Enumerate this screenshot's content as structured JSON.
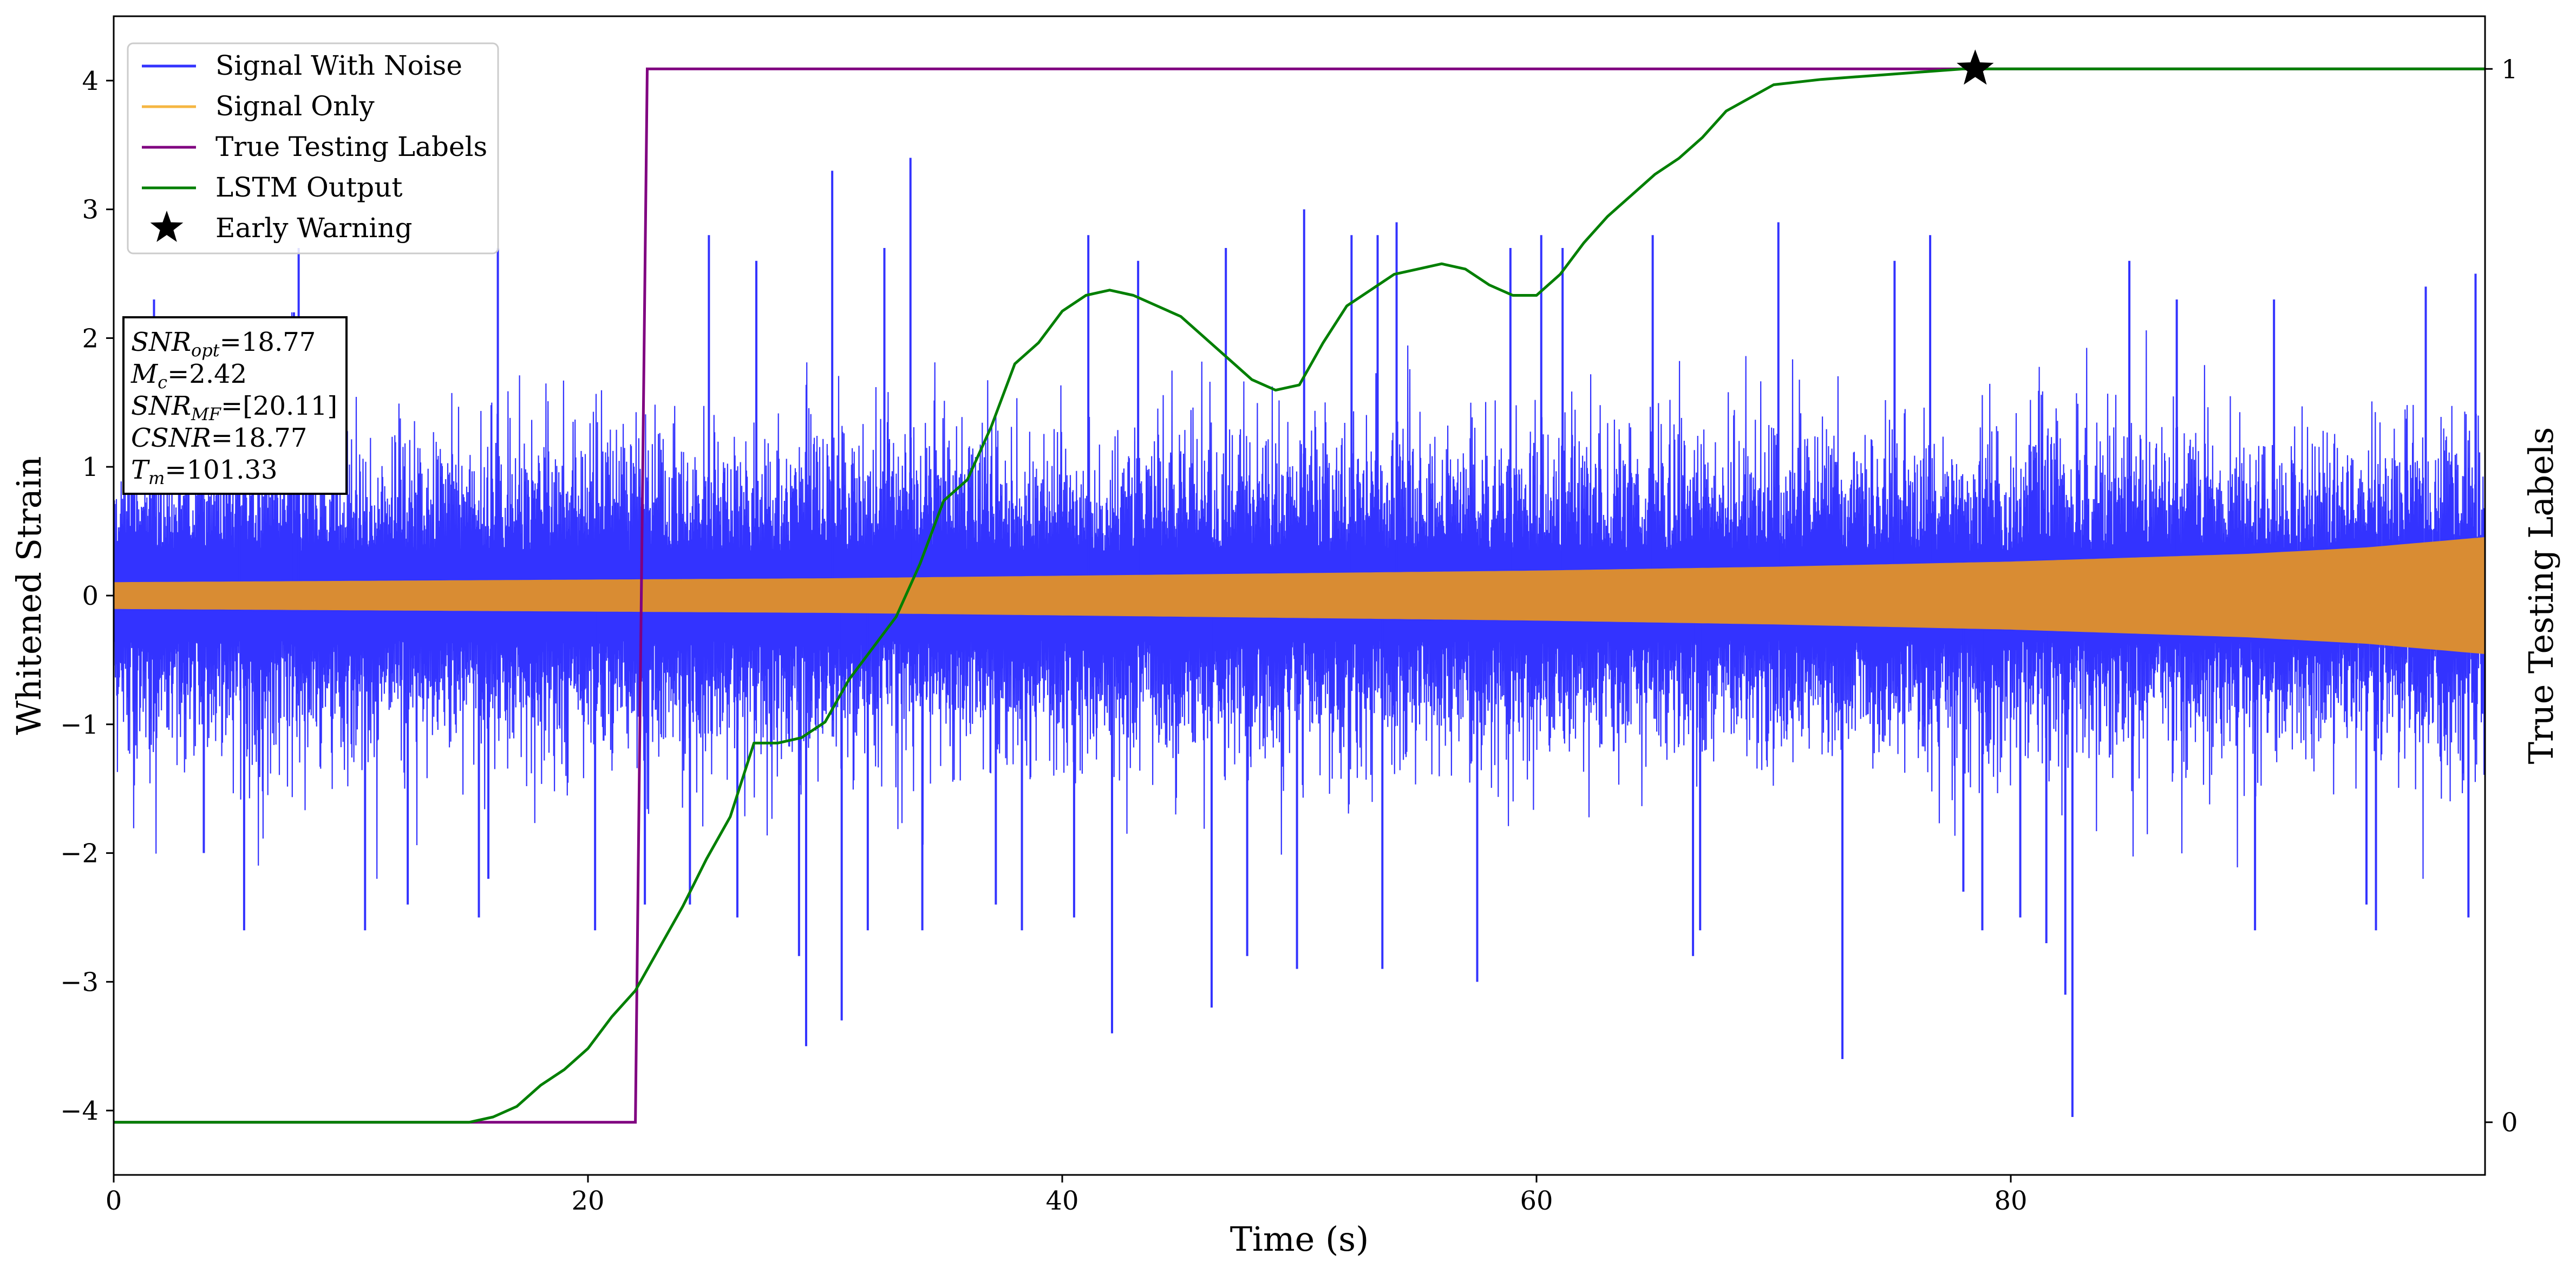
{
  "chart_data": {
    "type": "line",
    "xlabel": "Time (s)",
    "ylabel": "Whitened Strain",
    "ylabel_right": "True Testing Labels",
    "xlim": [
      0,
      100
    ],
    "ylim": [
      -4.5,
      4.5
    ],
    "ylim_right": [
      -0.05,
      1.05
    ],
    "x_ticks": [
      0,
      20,
      40,
      60,
      80
    ],
    "x_tick_labels": [
      "0",
      "20",
      "40",
      "60",
      "80"
    ],
    "y_ticks": [
      -4,
      -3,
      -2,
      -1,
      0,
      1,
      2,
      3,
      4
    ],
    "y_tick_labels": [
      "−4",
      "−3",
      "−2",
      "−1",
      "0",
      "1",
      "2",
      "3",
      "4"
    ],
    "y_ticks_right": [
      0,
      1
    ],
    "y_tick_labels_right": [
      "0",
      "1"
    ],
    "grid": false,
    "legend_position": "top-left",
    "colors": {
      "noise": "#3333ff",
      "signal": "#d98c33",
      "labels": "#800080",
      "lstm": "#007f00",
      "star": "#000000"
    },
    "series": [
      {
        "name": "Signal With Noise",
        "key": "noise",
        "style": "dense-noise",
        "typical_amplitude": 1.0,
        "spikes": [
          {
            "x": 0.8,
            "y": 1.4
          },
          {
            "x": 1.7,
            "y": 2.3
          },
          {
            "x": 3.8,
            "y": -2.0
          },
          {
            "x": 5.3,
            "y": 2.1
          },
          {
            "x": 5.5,
            "y": -2.6
          },
          {
            "x": 7.6,
            "y": 2.2
          },
          {
            "x": 7.8,
            "y": 2.7
          },
          {
            "x": 10.6,
            "y": -2.6
          },
          {
            "x": 12.4,
            "y": -2.4
          },
          {
            "x": 15.4,
            "y": -2.5
          },
          {
            "x": 15.8,
            "y": -2.2
          },
          {
            "x": 16.2,
            "y": 2.7
          },
          {
            "x": 20.3,
            "y": -2.6
          },
          {
            "x": 22.4,
            "y": -2.4
          },
          {
            "x": 24.3,
            "y": -2.4
          },
          {
            "x": 25.1,
            "y": 2.8
          },
          {
            "x": 26.3,
            "y": -2.5
          },
          {
            "x": 27.1,
            "y": 2.6
          },
          {
            "x": 28.9,
            "y": -2.8
          },
          {
            "x": 29.2,
            "y": -3.5
          },
          {
            "x": 30.3,
            "y": 3.3
          },
          {
            "x": 30.7,
            "y": -3.3
          },
          {
            "x": 31.8,
            "y": -2.6
          },
          {
            "x": 32.5,
            "y": 2.7
          },
          {
            "x": 33.6,
            "y": 3.4
          },
          {
            "x": 34.1,
            "y": -2.6
          },
          {
            "x": 37.2,
            "y": -2.4
          },
          {
            "x": 38.3,
            "y": -2.6
          },
          {
            "x": 40.5,
            "y": -2.5
          },
          {
            "x": 41.1,
            "y": 2.8
          },
          {
            "x": 42.1,
            "y": -3.4
          },
          {
            "x": 43.2,
            "y": 2.6
          },
          {
            "x": 46.3,
            "y": -3.2
          },
          {
            "x": 46.9,
            "y": 2.7
          },
          {
            "x": 47.8,
            "y": -2.8
          },
          {
            "x": 49.9,
            "y": -2.9
          },
          {
            "x": 50.2,
            "y": 3.0
          },
          {
            "x": 52.2,
            "y": 2.8
          },
          {
            "x": 53.3,
            "y": 2.8
          },
          {
            "x": 53.5,
            "y": -2.9
          },
          {
            "x": 54.1,
            "y": 2.9
          },
          {
            "x": 57.5,
            "y": -3.0
          },
          {
            "x": 58.9,
            "y": 2.7
          },
          {
            "x": 60.2,
            "y": 2.8
          },
          {
            "x": 61.1,
            "y": 2.7
          },
          {
            "x": 64.9,
            "y": 2.8
          },
          {
            "x": 66.6,
            "y": -2.8
          },
          {
            "x": 66.9,
            "y": -2.6
          },
          {
            "x": 70.2,
            "y": 2.9
          },
          {
            "x": 72.9,
            "y": -3.6
          },
          {
            "x": 75.1,
            "y": 2.6
          },
          {
            "x": 76.6,
            "y": 2.8
          },
          {
            "x": 78.0,
            "y": -2.3
          },
          {
            "x": 78.8,
            "y": -2.6
          },
          {
            "x": 80.4,
            "y": -2.5
          },
          {
            "x": 81.5,
            "y": -2.7
          },
          {
            "x": 82.3,
            "y": -3.1
          },
          {
            "x": 82.6,
            "y": -4.05
          },
          {
            "x": 85.0,
            "y": 2.6
          },
          {
            "x": 87.0,
            "y": 2.3
          },
          {
            "x": 90.3,
            "y": -2.6
          },
          {
            "x": 91.1,
            "y": 2.3
          },
          {
            "x": 95.0,
            "y": -2.4
          },
          {
            "x": 95.4,
            "y": -2.6
          },
          {
            "x": 97.5,
            "y": 2.4
          },
          {
            "x": 99.3,
            "y": -2.5
          },
          {
            "x": 99.6,
            "y": 2.5
          }
        ]
      },
      {
        "name": "Signal Only",
        "key": "signal",
        "style": "envelope",
        "x": [
          0,
          10,
          20,
          30,
          40,
          50,
          60,
          70,
          80,
          90,
          95,
          100
        ],
        "amplitude": [
          0.1,
          0.11,
          0.12,
          0.13,
          0.15,
          0.17,
          0.19,
          0.22,
          0.26,
          0.32,
          0.37,
          0.45
        ]
      },
      {
        "name": "True Testing Labels",
        "key": "labels",
        "style": "step",
        "axis": "right",
        "x": [
          0,
          22.0,
          22.5,
          100
        ],
        "y": [
          0,
          0,
          1,
          1
        ]
      },
      {
        "name": "LSTM Output",
        "key": "lstm",
        "style": "line",
        "axis": "right",
        "x": [
          0,
          15,
          16,
          17,
          18,
          19,
          20,
          21,
          22,
          23,
          24,
          25,
          26,
          27,
          28,
          29,
          30,
          31,
          32,
          33,
          34,
          35,
          36,
          37,
          38,
          39,
          40,
          41,
          42,
          43,
          44,
          45,
          46,
          47,
          48,
          49,
          50,
          51,
          52,
          53,
          54,
          55,
          56,
          57,
          58,
          59,
          60,
          61,
          62,
          63,
          64,
          65,
          66,
          67,
          68,
          70,
          72,
          75,
          78,
          80,
          85,
          90,
          100
        ],
        "y": [
          0,
          0,
          0.005,
          0.015,
          0.035,
          0.05,
          0.07,
          0.1,
          0.125,
          0.165,
          0.205,
          0.25,
          0.29,
          0.36,
          0.36,
          0.365,
          0.38,
          0.42,
          0.45,
          0.48,
          0.53,
          0.59,
          0.61,
          0.66,
          0.72,
          0.74,
          0.77,
          0.785,
          0.79,
          0.785,
          0.775,
          0.765,
          0.745,
          0.725,
          0.705,
          0.695,
          0.7,
          0.74,
          0.775,
          0.79,
          0.805,
          0.81,
          0.815,
          0.81,
          0.795,
          0.785,
          0.785,
          0.805,
          0.835,
          0.86,
          0.88,
          0.9,
          0.915,
          0.935,
          0.96,
          0.985,
          0.99,
          0.995,
          1.0,
          1.0,
          1.0,
          1.0,
          1.0
        ]
      },
      {
        "name": "Early Warning",
        "key": "star",
        "style": "marker",
        "axis": "right",
        "x": 78.5,
        "y": 1.0
      }
    ],
    "annotation": {
      "lines": [
        {
          "sym": "SNR",
          "sub": "opt",
          "value": "=18.77"
        },
        {
          "sym": "M",
          "sub": "c",
          "value": "=2.42"
        },
        {
          "sym": "SNR",
          "sub": "MF",
          "value": "=[20.11]"
        },
        {
          "sym": "CSNR",
          "sub": "",
          "value": "=18.77"
        },
        {
          "sym": "T",
          "sub": "m",
          "value": "=101.33"
        }
      ]
    }
  }
}
